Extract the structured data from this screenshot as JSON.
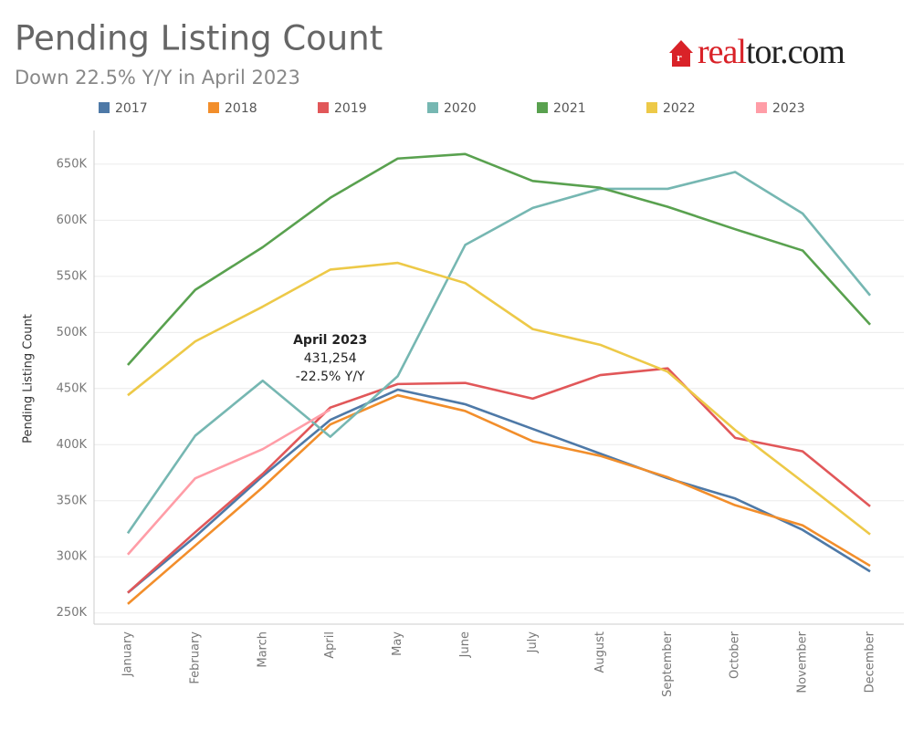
{
  "chart_data": {
    "type": "line",
    "title": "Pending Listing Count",
    "subtitle": "Down 22.5% Y/Y in April 2023",
    "logo": [
      "real",
      "tor.com"
    ],
    "y_label": "Pending Listing Count",
    "categories": [
      "January",
      "February",
      "March",
      "April",
      "May",
      "June",
      "July",
      "August",
      "September",
      "October",
      "November",
      "December"
    ],
    "series": [
      {
        "name": "2017",
        "color": "#4e79a7",
        "values": [
          268000,
          318000,
          372000,
          422000,
          449000,
          436000,
          414000,
          392000,
          370000,
          352000,
          324000,
          287000
        ]
      },
      {
        "name": "2018",
        "color": "#f28e2b",
        "values": [
          258000,
          310000,
          362000,
          418000,
          444000,
          430000,
          403000,
          390000,
          371000,
          346000,
          328000,
          292000
        ]
      },
      {
        "name": "2019",
        "color": "#e15759",
        "values": [
          268000,
          322000,
          374000,
          433000,
          454000,
          455000,
          441000,
          462000,
          468000,
          406000,
          394000,
          345000
        ]
      },
      {
        "name": "2020",
        "color": "#76b7b2",
        "values": [
          321000,
          408000,
          457000,
          407000,
          461000,
          578000,
          611000,
          628000,
          628000,
          643000,
          606000,
          533000
        ]
      },
      {
        "name": "2021",
        "color": "#59a14f",
        "values": [
          471000,
          538000,
          576000,
          620000,
          655000,
          659000,
          635000,
          629000,
          612000,
          592000,
          573000,
          507000
        ]
      },
      {
        "name": "2022",
        "color": "#edc948",
        "values": [
          444000,
          492000,
          523000,
          556000,
          562000,
          544000,
          503000,
          489000,
          465000,
          413000,
          367000,
          320000
        ]
      },
      {
        "name": "2023",
        "color": "#ff9da7",
        "values": [
          302000,
          370000,
          396000,
          431254,
          null,
          null,
          null,
          null,
          null,
          null,
          null,
          null
        ]
      }
    ],
    "annotation": {
      "series": 6,
      "index": 3,
      "lines": [
        "April 2023",
        "431,254",
        "-22.5% Y/Y"
      ]
    },
    "ylim": [
      240000,
      680000
    ],
    "yticks": [
      {
        "value": 250000,
        "label": "250K"
      },
      {
        "value": 300000,
        "label": "300K"
      },
      {
        "value": 350000,
        "label": "350K"
      },
      {
        "value": 400000,
        "label": "400K"
      },
      {
        "value": 450000,
        "label": "450K"
      },
      {
        "value": 500000,
        "label": "500K"
      },
      {
        "value": 550000,
        "label": "550K"
      },
      {
        "value": 600000,
        "label": "600K"
      },
      {
        "value": 650000,
        "label": "650K"
      }
    ],
    "grid": true
  }
}
